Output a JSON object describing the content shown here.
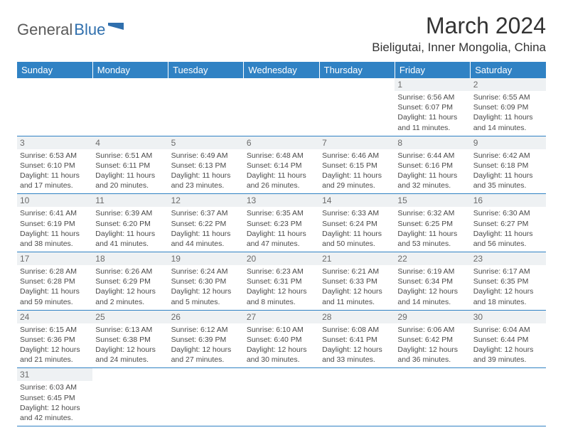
{
  "logo": {
    "part1": "General",
    "part2": "Blue"
  },
  "title": "March 2024",
  "location": "Bieligutai, Inner Mongolia, China",
  "colors": {
    "header_bg": "#3082c4",
    "header_text": "#ffffff",
    "daynum_bg": "#eef1f3",
    "border": "#3082c4",
    "logo_blue": "#2f6fad"
  },
  "day_headers": [
    "Sunday",
    "Monday",
    "Tuesday",
    "Wednesday",
    "Thursday",
    "Friday",
    "Saturday"
  ],
  "weeks": [
    [
      null,
      null,
      null,
      null,
      null,
      {
        "n": "1",
        "sunrise": "6:56 AM",
        "sunset": "6:07 PM",
        "daylight": "11 hours and 11 minutes."
      },
      {
        "n": "2",
        "sunrise": "6:55 AM",
        "sunset": "6:09 PM",
        "daylight": "11 hours and 14 minutes."
      }
    ],
    [
      {
        "n": "3",
        "sunrise": "6:53 AM",
        "sunset": "6:10 PM",
        "daylight": "11 hours and 17 minutes."
      },
      {
        "n": "4",
        "sunrise": "6:51 AM",
        "sunset": "6:11 PM",
        "daylight": "11 hours and 20 minutes."
      },
      {
        "n": "5",
        "sunrise": "6:49 AM",
        "sunset": "6:13 PM",
        "daylight": "11 hours and 23 minutes."
      },
      {
        "n": "6",
        "sunrise": "6:48 AM",
        "sunset": "6:14 PM",
        "daylight": "11 hours and 26 minutes."
      },
      {
        "n": "7",
        "sunrise": "6:46 AM",
        "sunset": "6:15 PM",
        "daylight": "11 hours and 29 minutes."
      },
      {
        "n": "8",
        "sunrise": "6:44 AM",
        "sunset": "6:16 PM",
        "daylight": "11 hours and 32 minutes."
      },
      {
        "n": "9",
        "sunrise": "6:42 AM",
        "sunset": "6:18 PM",
        "daylight": "11 hours and 35 minutes."
      }
    ],
    [
      {
        "n": "10",
        "sunrise": "6:41 AM",
        "sunset": "6:19 PM",
        "daylight": "11 hours and 38 minutes."
      },
      {
        "n": "11",
        "sunrise": "6:39 AM",
        "sunset": "6:20 PM",
        "daylight": "11 hours and 41 minutes."
      },
      {
        "n": "12",
        "sunrise": "6:37 AM",
        "sunset": "6:22 PM",
        "daylight": "11 hours and 44 minutes."
      },
      {
        "n": "13",
        "sunrise": "6:35 AM",
        "sunset": "6:23 PM",
        "daylight": "11 hours and 47 minutes."
      },
      {
        "n": "14",
        "sunrise": "6:33 AM",
        "sunset": "6:24 PM",
        "daylight": "11 hours and 50 minutes."
      },
      {
        "n": "15",
        "sunrise": "6:32 AM",
        "sunset": "6:25 PM",
        "daylight": "11 hours and 53 minutes."
      },
      {
        "n": "16",
        "sunrise": "6:30 AM",
        "sunset": "6:27 PM",
        "daylight": "11 hours and 56 minutes."
      }
    ],
    [
      {
        "n": "17",
        "sunrise": "6:28 AM",
        "sunset": "6:28 PM",
        "daylight": "11 hours and 59 minutes."
      },
      {
        "n": "18",
        "sunrise": "6:26 AM",
        "sunset": "6:29 PM",
        "daylight": "12 hours and 2 minutes."
      },
      {
        "n": "19",
        "sunrise": "6:24 AM",
        "sunset": "6:30 PM",
        "daylight": "12 hours and 5 minutes."
      },
      {
        "n": "20",
        "sunrise": "6:23 AM",
        "sunset": "6:31 PM",
        "daylight": "12 hours and 8 minutes."
      },
      {
        "n": "21",
        "sunrise": "6:21 AM",
        "sunset": "6:33 PM",
        "daylight": "12 hours and 11 minutes."
      },
      {
        "n": "22",
        "sunrise": "6:19 AM",
        "sunset": "6:34 PM",
        "daylight": "12 hours and 14 minutes."
      },
      {
        "n": "23",
        "sunrise": "6:17 AM",
        "sunset": "6:35 PM",
        "daylight": "12 hours and 18 minutes."
      }
    ],
    [
      {
        "n": "24",
        "sunrise": "6:15 AM",
        "sunset": "6:36 PM",
        "daylight": "12 hours and 21 minutes."
      },
      {
        "n": "25",
        "sunrise": "6:13 AM",
        "sunset": "6:38 PM",
        "daylight": "12 hours and 24 minutes."
      },
      {
        "n": "26",
        "sunrise": "6:12 AM",
        "sunset": "6:39 PM",
        "daylight": "12 hours and 27 minutes."
      },
      {
        "n": "27",
        "sunrise": "6:10 AM",
        "sunset": "6:40 PM",
        "daylight": "12 hours and 30 minutes."
      },
      {
        "n": "28",
        "sunrise": "6:08 AM",
        "sunset": "6:41 PM",
        "daylight": "12 hours and 33 minutes."
      },
      {
        "n": "29",
        "sunrise": "6:06 AM",
        "sunset": "6:42 PM",
        "daylight": "12 hours and 36 minutes."
      },
      {
        "n": "30",
        "sunrise": "6:04 AM",
        "sunset": "6:44 PM",
        "daylight": "12 hours and 39 minutes."
      }
    ],
    [
      {
        "n": "31",
        "sunrise": "6:03 AM",
        "sunset": "6:45 PM",
        "daylight": "12 hours and 42 minutes."
      },
      null,
      null,
      null,
      null,
      null,
      null
    ]
  ],
  "labels": {
    "sunrise_prefix": "Sunrise: ",
    "sunset_prefix": "Sunset: ",
    "daylight_prefix": "Daylight: "
  }
}
